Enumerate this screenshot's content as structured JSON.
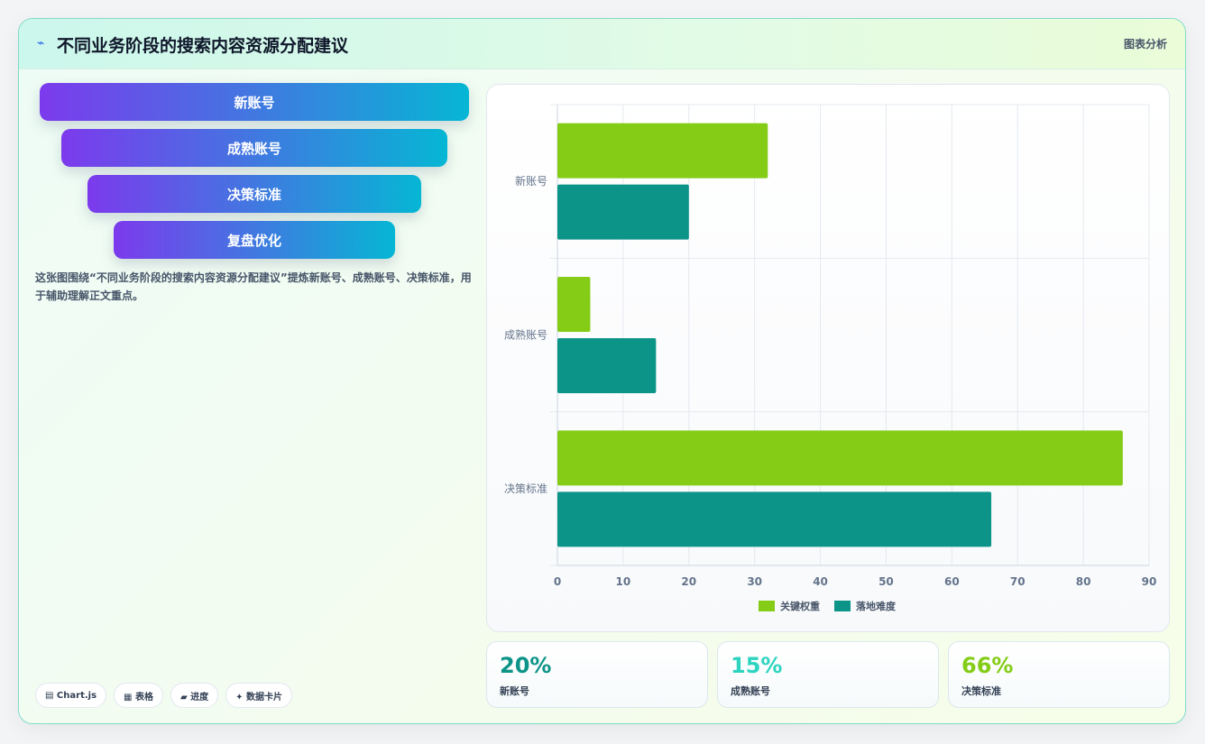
{
  "header": {
    "icon": "spark-icon",
    "title": "不同业务阶段的搜索内容资源分配建议",
    "tag": "图表分析"
  },
  "funnel": {
    "steps": [
      "新账号",
      "成熟账号",
      "决策标准",
      "复盘优化"
    ],
    "gradient": [
      "#7c3aed",
      "#06b6d4"
    ]
  },
  "description": "这张图围绕“不同业务阶段的搜索内容资源分配建议”提炼新账号、成熟账号、决策标准，用于辅助理解正文重点。",
  "pills": [
    "▤ Chart.js",
    "▦ 表格",
    "▰ 进度",
    "✦ 数据卡片"
  ],
  "chart_data": {
    "type": "bar",
    "orientation": "horizontal",
    "categories": [
      "新账号",
      "成熟账号",
      "决策标准"
    ],
    "series": [
      {
        "name": "关键权重",
        "color": "#84cc16",
        "values": [
          32,
          5,
          86
        ]
      },
      {
        "name": "落地难度",
        "color": "#0d9488",
        "values": [
          20,
          15,
          66
        ]
      }
    ],
    "xlim": [
      0,
      90
    ],
    "xticks": [
      0,
      10,
      20,
      30,
      40,
      50,
      60,
      70,
      80,
      90
    ],
    "grid": true,
    "legend": "bottom"
  },
  "stats": [
    {
      "value": "20%",
      "label": "新账号",
      "color": "#0d9488"
    },
    {
      "value": "15%",
      "label": "成熟账号",
      "color": "#2dd4bf"
    },
    {
      "value": "66%",
      "label": "决策标准",
      "color": "#84cc16"
    }
  ]
}
